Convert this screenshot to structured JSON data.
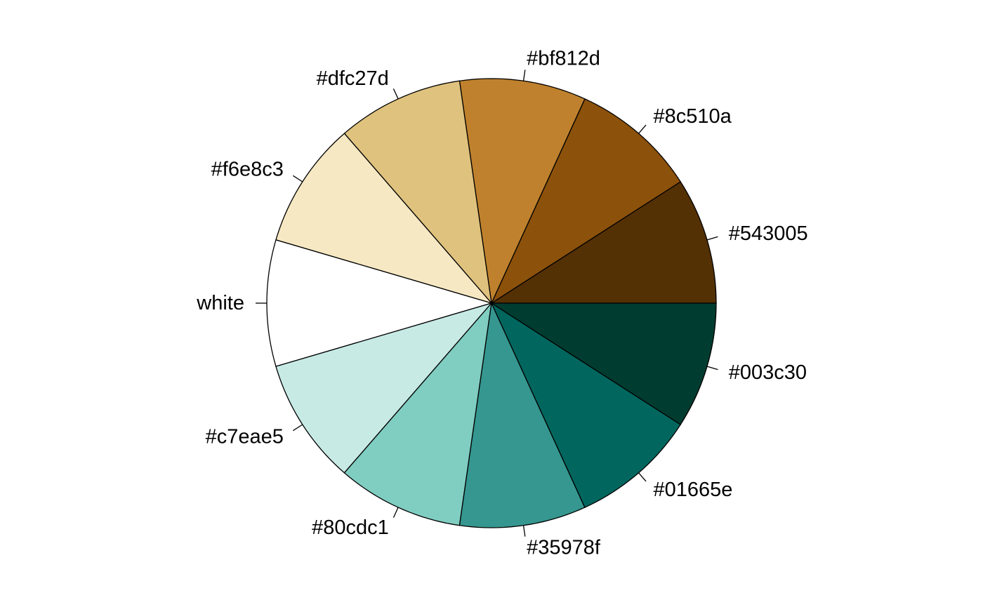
{
  "chart_data": {
    "type": "pie",
    "title": "",
    "start_angle_deg": 0,
    "direction": "counterclockwise",
    "slices": [
      {
        "label": "#543005",
        "value": 1,
        "color": "#543005"
      },
      {
        "label": "#8c510a",
        "value": 1,
        "color": "#8c510a"
      },
      {
        "label": "#bf812d",
        "value": 1,
        "color": "#bf812d"
      },
      {
        "label": "#dfc27d",
        "value": 1,
        "color": "#dfc27d"
      },
      {
        "label": "#f6e8c3",
        "value": 1,
        "color": "#f6e8c3"
      },
      {
        "label": "white",
        "value": 1,
        "color": "#ffffff"
      },
      {
        "label": "#c7eae5",
        "value": 1,
        "color": "#c7eae5"
      },
      {
        "label": "#80cdc1",
        "value": 1,
        "color": "#80cdc1"
      },
      {
        "label": "#35978f",
        "value": 1,
        "color": "#35978f"
      },
      {
        "label": "#01665e",
        "value": 1,
        "color": "#01665e"
      },
      {
        "label": "#003c30",
        "value": 1,
        "color": "#003c30"
      }
    ]
  }
}
